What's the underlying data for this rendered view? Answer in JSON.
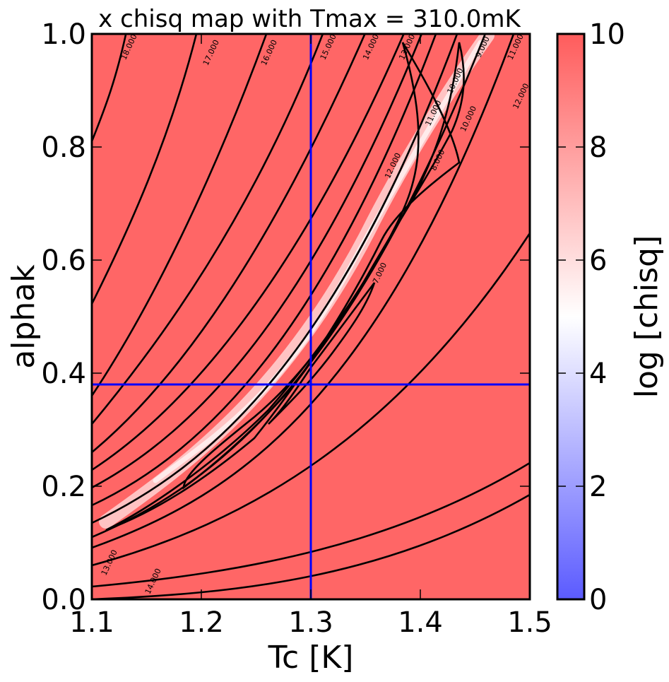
{
  "chart_data": {
    "type": "heatmap",
    "title": "x chisq map with Tmax = 310.0mK",
    "xlabel": "Tc [K]",
    "ylabel": "alphak",
    "xlim": [
      1.1,
      1.5
    ],
    "ylim": [
      0.0,
      1.0
    ],
    "x_ticks": [
      "1.1",
      "1.2",
      "1.3",
      "1.4",
      "1.5"
    ],
    "y_ticks": [
      "0.0",
      "0.2",
      "0.4",
      "0.6",
      "0.8",
      "1.0"
    ],
    "colorbar": {
      "label": "log [chisq]",
      "range": [
        0,
        10
      ],
      "ticks": [
        "0",
        "2",
        "4",
        "6",
        "8",
        "10"
      ],
      "colormap": "bwr",
      "low_color": "#5b5bff",
      "mid_color": "#ffffff",
      "high_color": "#ff5c5c"
    },
    "background_color": "#ff6666",
    "best_fit": {
      "x": 1.3,
      "y": 0.38,
      "line_color": "#0000ff"
    },
    "contour_labels": [
      {
        "text": "18.000",
        "x": 1.136,
        "y": 0.975
      },
      {
        "text": "17.000",
        "x": 1.211,
        "y": 0.965
      },
      {
        "text": "16.000",
        "x": 1.264,
        "y": 0.965
      },
      {
        "text": "15.000",
        "x": 1.318,
        "y": 0.975
      },
      {
        "text": "14.000",
        "x": 1.357,
        "y": 0.975
      },
      {
        "text": "13.000",
        "x": 1.39,
        "y": 0.975
      },
      {
        "text": "9.000",
        "x": 1.459,
        "y": 0.975
      },
      {
        "text": "11.000",
        "x": 1.489,
        "y": 0.975
      },
      {
        "text": "10.000",
        "x": 1.434,
        "y": 0.915
      },
      {
        "text": "11.000",
        "x": 1.414,
        "y": 0.858
      },
      {
        "text": "10.000",
        "x": 1.446,
        "y": 0.848
      },
      {
        "text": "12.000",
        "x": 1.494,
        "y": 0.888
      },
      {
        "text": "8.000",
        "x": 1.418,
        "y": 0.775
      },
      {
        "text": "12.000",
        "x": 1.377,
        "y": 0.765
      },
      {
        "text": "7.000",
        "x": 1.365,
        "y": 0.575
      },
      {
        "text": "13.000",
        "x": 1.118,
        "y": 0.063
      },
      {
        "text": "14.000",
        "x": 1.158,
        "y": 0.03
      }
    ]
  }
}
